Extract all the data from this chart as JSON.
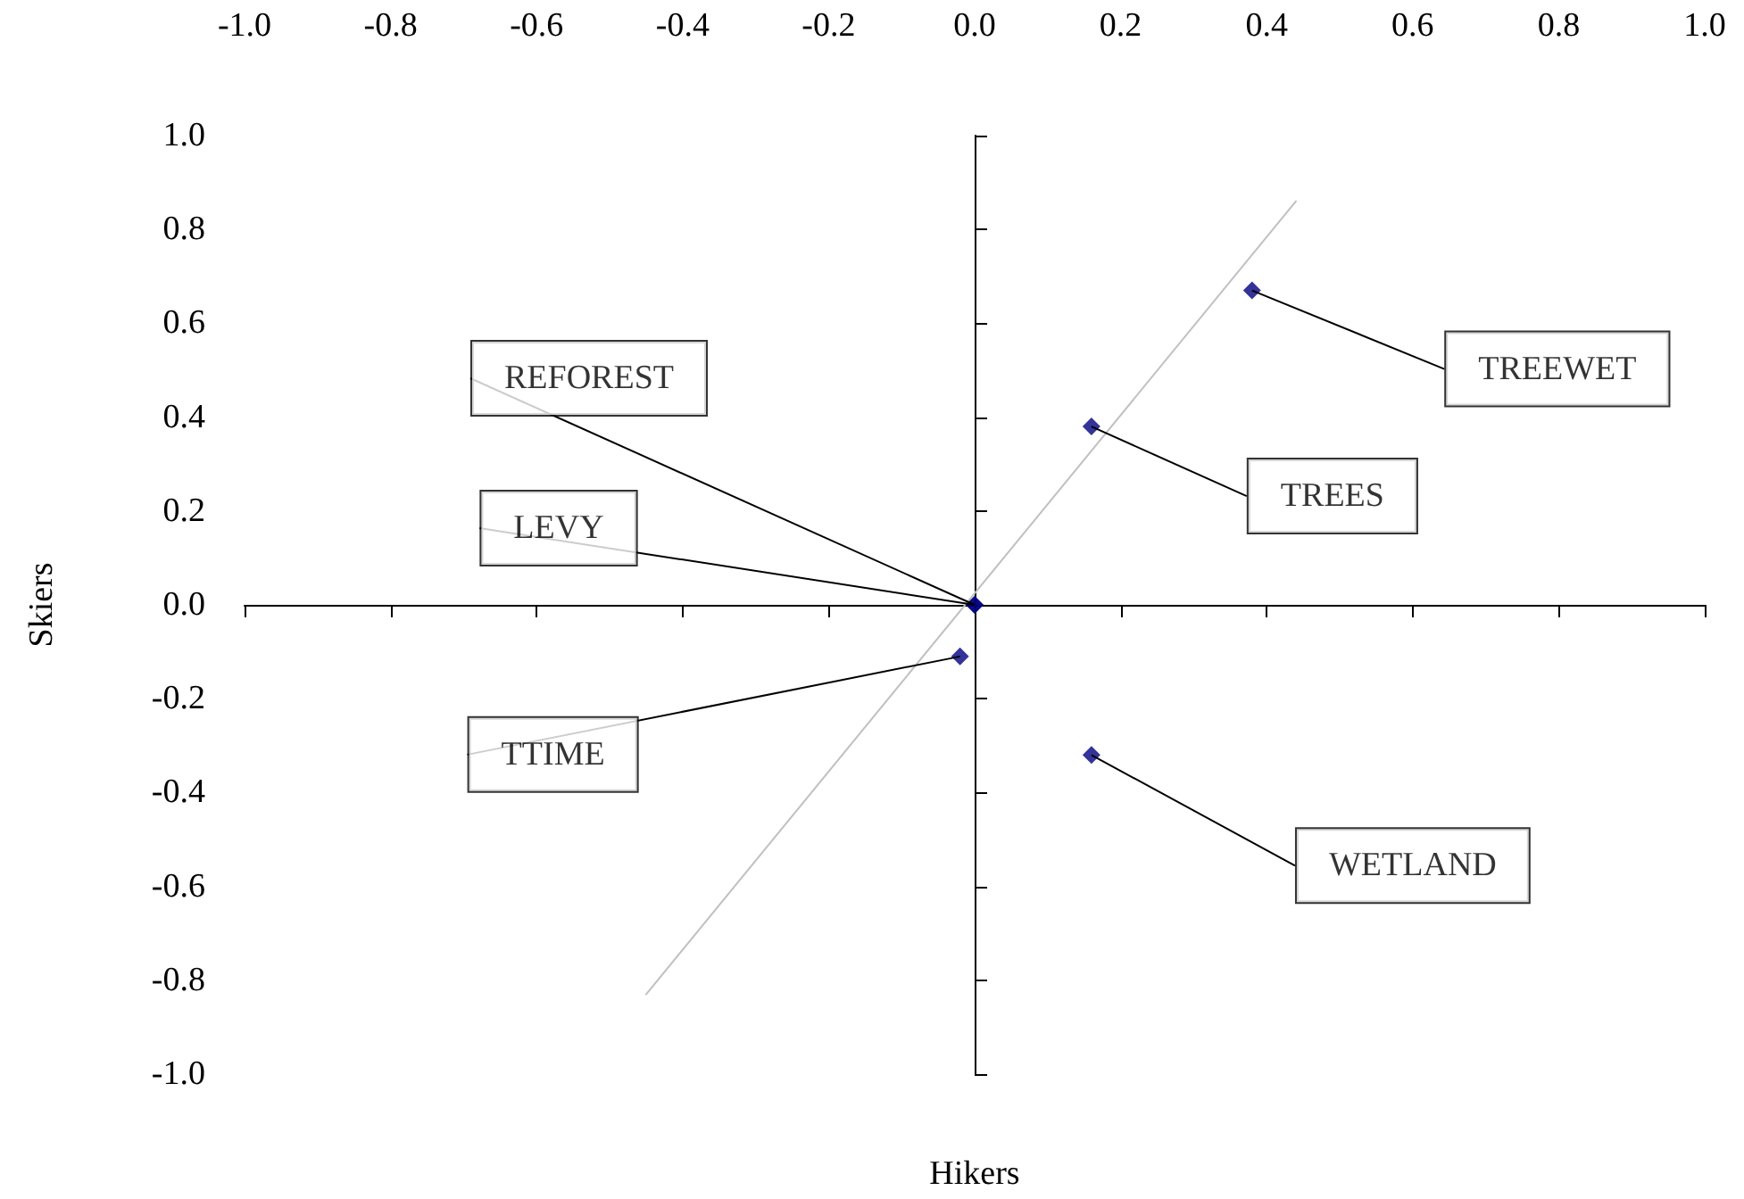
{
  "chart_data": {
    "type": "scatter",
    "xlabel": "Hikers",
    "ylabel": "Skiers",
    "xlim": [
      -1,
      1
    ],
    "ylim": [
      -1,
      1
    ],
    "xticks": [
      {
        "value": -1,
        "label": "-1.0"
      },
      -0.8,
      -0.6,
      -0.4,
      -0.2,
      {
        "value": 0,
        "label": "0.0"
      },
      0.2,
      0.4,
      0.6,
      0.8,
      {
        "value": 1,
        "label": "1.0"
      }
    ],
    "yticks": [
      {
        "value": -1,
        "label": "-1.0"
      },
      -0.8,
      -0.6,
      -0.4,
      -0.2,
      {
        "value": 0,
        "label": "0.0"
      },
      0.2,
      0.4,
      0.6,
      0.8,
      {
        "value": 1,
        "label": "1.0"
      }
    ],
    "line_style": "solid",
    "series": [
      {
        "color": "#000080",
        "marker": "diamond",
        "x": [
          0.38,
          0.16,
          0.16,
          -0.02,
          0,
          0
        ],
        "values": [
          0.67,
          0.38,
          -0.32,
          -0.11,
          0,
          0
        ]
      },
      {
        "type": "line",
        "color": "#c0c0c0",
        "marker": "none",
        "x": [
          -0.45,
          0.44
        ],
        "values": [
          -0.83,
          0.86
        ]
      }
    ],
    "annotations": [
      {
        "text": "TREEWET",
        "x": 0.38,
        "y": 0.67
      },
      {
        "text": "TREES",
        "x": 0.16,
        "y": 0.38
      },
      {
        "text": "WETLAND",
        "x": 0.16,
        "y": -0.32
      },
      {
        "text": "TTIME",
        "x": -0.02,
        "y": -0.11
      },
      {
        "text": "LEVY",
        "x": 0,
        "y": 0
      },
      {
        "text": "REFOREST",
        "x": 0,
        "y": 0
      }
    ]
  }
}
